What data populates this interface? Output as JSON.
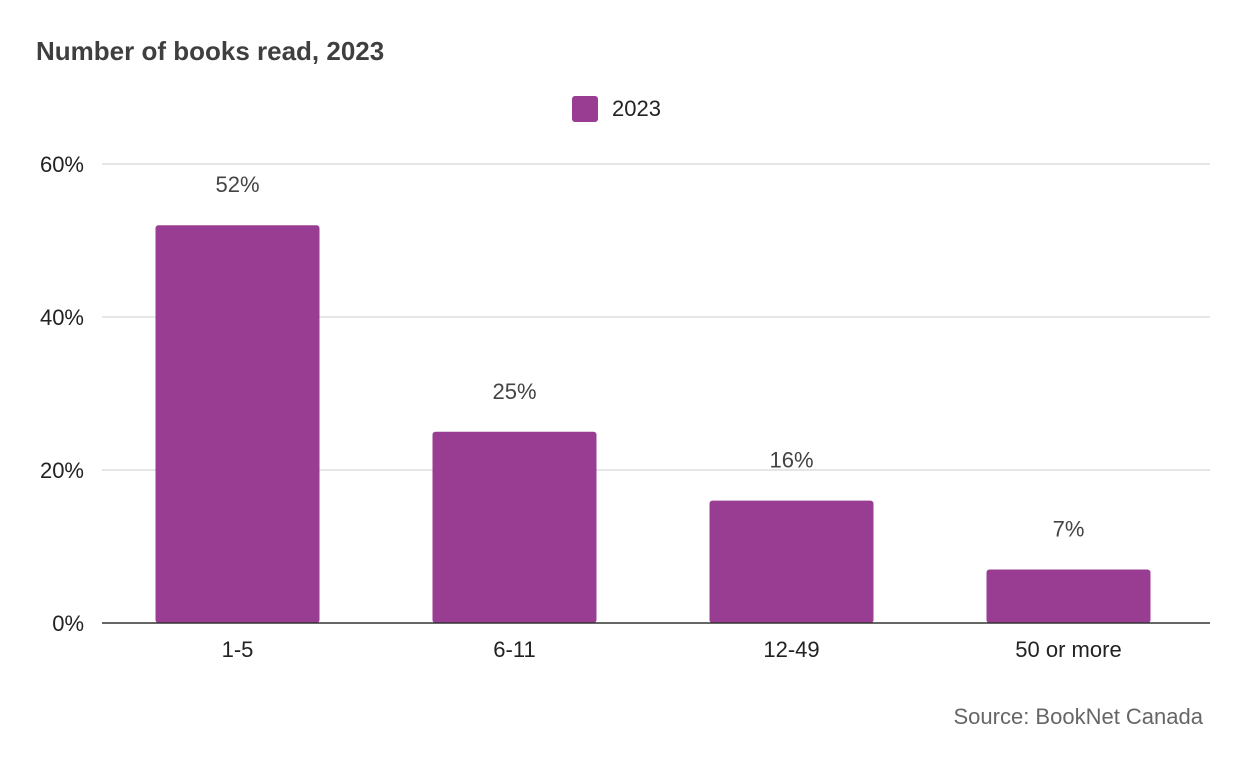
{
  "chart_data": {
    "type": "bar",
    "title": "Number of books read, 2023",
    "categories": [
      "1-5",
      "6-11",
      "12-49",
      "50 or more"
    ],
    "series": [
      {
        "name": "2023",
        "values": [
          52,
          25,
          16,
          7
        ],
        "color": "#993d93"
      }
    ],
    "data_labels": [
      "52%",
      "25%",
      "16%",
      "7%"
    ],
    "y_ticks": [
      "0%",
      "20%",
      "40%",
      "60%"
    ],
    "y_tick_values": [
      0,
      20,
      40,
      60
    ],
    "ylim": [
      0,
      60
    ],
    "xlabel": "",
    "ylabel": "",
    "grid": true,
    "legend_position": "top-center",
    "source": "Source: BookNet Canada"
  }
}
